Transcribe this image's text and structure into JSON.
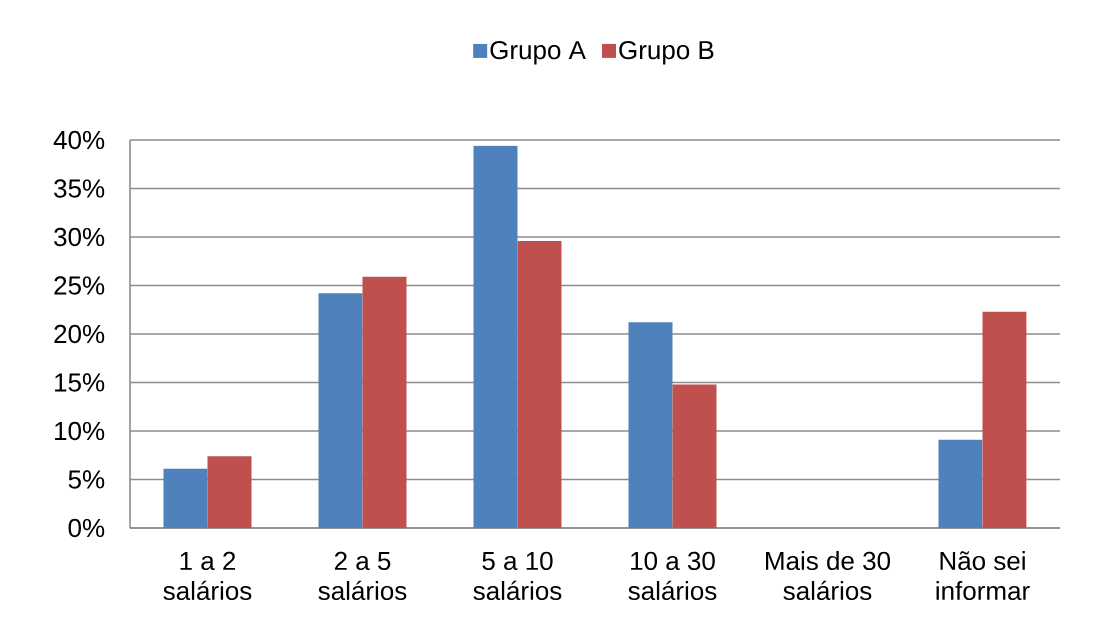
{
  "chart_data": {
    "type": "bar",
    "categories": [
      "1 a 2 salários",
      "2 a 5 salários",
      "5 a 10 salários",
      "10 a 30 salários",
      "Mais de 30 salários",
      "Não sei informar"
    ],
    "series": [
      {
        "name": "Grupo A",
        "color": "#4f81bd",
        "values": [
          6.1,
          24.2,
          39.4,
          21.2,
          0,
          9.1
        ]
      },
      {
        "name": "Grupo B",
        "color": "#c0504d",
        "values": [
          7.4,
          25.9,
          29.6,
          14.8,
          0,
          22.3
        ]
      }
    ],
    "ylim": [
      0,
      40
    ],
    "yticks": [
      {
        "value": 0,
        "label": "0%"
      },
      {
        "value": 5,
        "label": "5%"
      },
      {
        "value": 10,
        "label": "10%"
      },
      {
        "value": 15,
        "label": "15%"
      },
      {
        "value": 20,
        "label": "20%"
      },
      {
        "value": 25,
        "label": "25%"
      },
      {
        "value": 30,
        "label": "30%"
      },
      {
        "value": 35,
        "label": "35%"
      },
      {
        "value": 40,
        "label": "40%"
      }
    ],
    "grid": "y",
    "legend": "top"
  }
}
